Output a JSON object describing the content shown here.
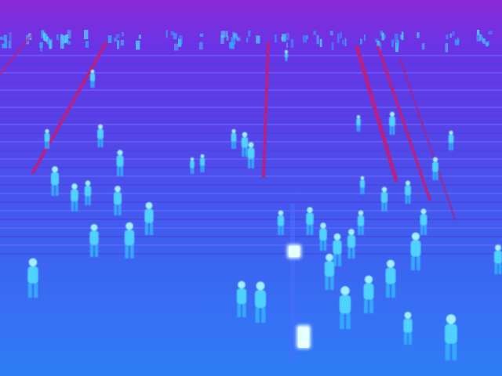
{
  "scene": {
    "palette": {
      "sky_top": "#8a2ad6",
      "sky_bottom": "#6a34e6",
      "stairs_top": "#5a3fe6",
      "stairs_mid": "#3f5ef0",
      "ground": "#2f7df6",
      "step_light": "#6b6cff",
      "step_dark": "#4a3fd8",
      "railing_hot": "#c01e7a",
      "person_hot": "#9ff0ff",
      "person_warm": "#4fd2ff",
      "person_cool": "#36a8ff",
      "lamp": "#e6ffff"
    },
    "icons": {
      "people": "person-icon",
      "lamp": "lamp-post-icon",
      "railing": "railing-icon"
    }
  }
}
